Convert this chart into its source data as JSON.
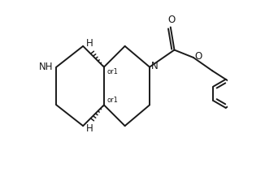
{
  "background_color": "#ffffff",
  "line_color": "#1a1a1a",
  "line_width": 1.4,
  "font_size": 8.5,
  "figsize": [
    3.26,
    2.12
  ],
  "dpi": 100,
  "xlim": [
    0.0,
    1.0
  ],
  "ylim": [
    0.05,
    0.95
  ]
}
